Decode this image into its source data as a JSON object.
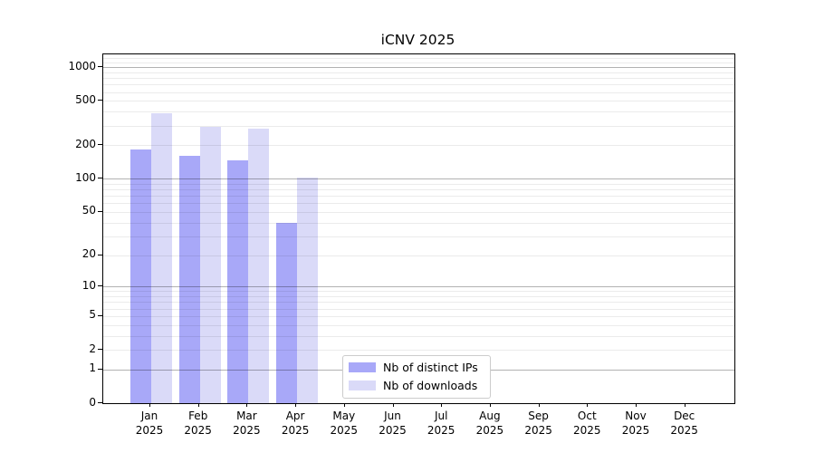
{
  "title": "iCNV 2025",
  "chart_data": {
    "type": "bar",
    "title": "iCNV 2025",
    "y_scale": "log10(value+1)",
    "categories": [
      "Jan 2025",
      "Feb 2025",
      "Mar 2025",
      "Apr 2025",
      "May 2025",
      "Jun 2025",
      "Jul 2025",
      "Aug 2025",
      "Sep 2025",
      "Oct 2025",
      "Nov 2025",
      "Dec 2025"
    ],
    "series": [
      {
        "name": "Nb of distinct IPs",
        "color": "#a8a8f8",
        "values": [
          182,
          160,
          146,
          40,
          0,
          0,
          0,
          0,
          0,
          0,
          0,
          0
        ]
      },
      {
        "name": "Nb of downloads",
        "color": "#dadaf8",
        "values": [
          385,
          295,
          281,
          102,
          0,
          0,
          0,
          0,
          0,
          0,
          0,
          0
        ]
      }
    ],
    "y_ticks": [
      0,
      1,
      2,
      5,
      10,
      20,
      50,
      100,
      200,
      500,
      1000
    ],
    "ylim": [
      0,
      1304
    ],
    "grid": true,
    "major_grid_values": [
      1,
      10,
      100,
      1000
    ],
    "legend_position": "inside-bottom"
  },
  "colors": {
    "background": "#ffffff",
    "axis": "#000000",
    "major_grid": "rgba(0,0,0,0.30)",
    "minor_grid": "rgba(0,0,0,0.08)",
    "bar_ips": "#a8a8f8",
    "bar_downloads": "#dadaf8"
  }
}
